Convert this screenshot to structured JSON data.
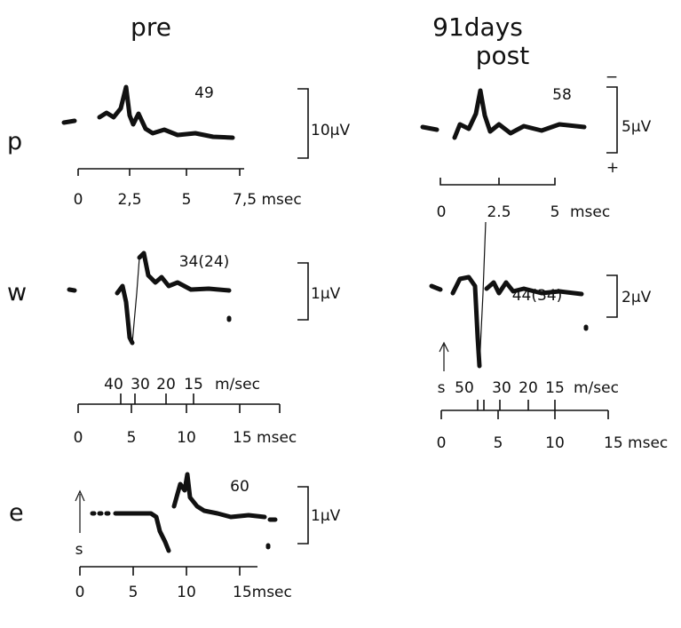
{
  "headings": {
    "pre": "pre",
    "post_line1": "91days",
    "post_line2": "post"
  },
  "row_labels": [
    "p",
    "w",
    "e"
  ],
  "panels": {
    "p_pre": {
      "count": "49",
      "scale": "10µV",
      "ticks": [
        "0",
        "2,5",
        "5",
        "7,5 msec"
      ]
    },
    "p_post": {
      "count": "58",
      "scale": "5µV",
      "minus": "−",
      "plus": "+",
      "ticks": [
        "0",
        "2.5",
        "5"
      ],
      "unit": "msec"
    },
    "w_pre": {
      "count": "34(24)",
      "scale": "1µV",
      "velocity": [
        "40",
        "30",
        "20",
        "15"
      ],
      "velocity_unit": "m/sec",
      "ticks": [
        "0",
        "5",
        "10",
        "15 msec"
      ]
    },
    "w_post": {
      "count": "44(34)",
      "scale": "2µV",
      "stim": "s",
      "velocity": [
        "50",
        "30",
        "20",
        "15"
      ],
      "velocity_unit": "m/sec",
      "ticks": [
        "0",
        "5",
        "10",
        "15 msec"
      ]
    },
    "e_pre": {
      "count": "60",
      "scale": "1µV",
      "stim": "s",
      "ticks": [
        "0",
        "5",
        "10",
        "15msec"
      ]
    }
  }
}
